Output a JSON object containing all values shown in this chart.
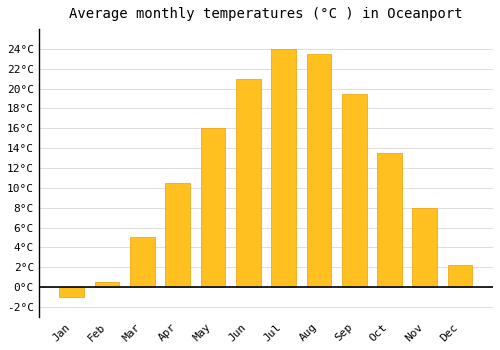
{
  "months": [
    "Jan",
    "Feb",
    "Mar",
    "Apr",
    "May",
    "Jun",
    "Jul",
    "Aug",
    "Sep",
    "Oct",
    "Nov",
    "Dec"
  ],
  "values": [
    -1.0,
    0.5,
    5.0,
    10.5,
    16.0,
    21.0,
    24.0,
    23.5,
    19.5,
    13.5,
    8.0,
    2.2
  ],
  "bar_color": "#FFC020",
  "bar_edge_color": "#E8A000",
  "title": "Average monthly temperatures (°C ) in Oceanport",
  "ylim": [
    -3,
    26
  ],
  "yticks": [
    -2,
    0,
    2,
    4,
    6,
    8,
    10,
    12,
    14,
    16,
    18,
    20,
    22,
    24
  ],
  "background_color": "#ffffff",
  "plot_bg_color": "#ffffff",
  "grid_color": "#dddddd",
  "title_fontsize": 10,
  "tick_fontsize": 8,
  "font_family": "monospace"
}
